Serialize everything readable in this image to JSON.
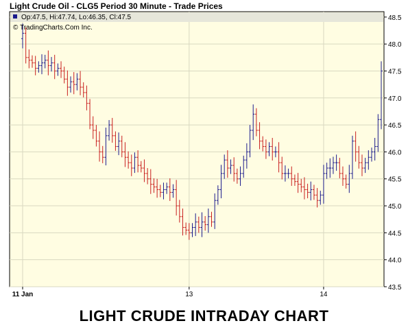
{
  "header": {
    "title": "Light Crude Oil - CLG5 Period 30 Minute - Trade Prices",
    "ohlc": "Op:47.5, Hi:47.74, Lo:46.35, Cl:47.5",
    "source": "© TradingCharts.Com Inc."
  },
  "caption": "LIGHT CRUDE INTRADAY CHART",
  "colors": {
    "up": "#1a1a8c",
    "down": "#c81e1e",
    "background": "#fffde2",
    "info_band": "#e6e6da"
  },
  "chart_data": {
    "type": "ohlc",
    "title": "Light Crude Oil - CLG5 Period 30 Minute - Trade Prices",
    "x_ticks": [
      {
        "label": "11 Jan",
        "index": 0
      },
      {
        "label": "13",
        "index": 52
      },
      {
        "label": "14",
        "index": 94
      }
    ],
    "y_ticks": [
      "43.5",
      "44.0",
      "44.5",
      "45.0",
      "45.5",
      "46.0",
      "46.5",
      "47.0",
      "47.5",
      "48.0",
      "48.5"
    ],
    "ylim": [
      43.5,
      48.6
    ],
    "grid": true,
    "legend": "none",
    "values": [
      48.2,
      47.75,
      47.7,
      47.65,
      47.55,
      47.6,
      47.65,
      47.7,
      47.6,
      47.65,
      47.5,
      47.55,
      47.5,
      47.35,
      47.2,
      47.3,
      47.25,
      47.35,
      47.2,
      47.1,
      46.9,
      46.5,
      46.4,
      46.2,
      46.0,
      45.9,
      46.3,
      46.5,
      46.3,
      46.1,
      46.2,
      46.0,
      45.9,
      45.8,
      45.7,
      45.9,
      45.75,
      45.7,
      45.6,
      45.5,
      45.4,
      45.35,
      45.3,
      45.25,
      45.3,
      45.35,
      45.25,
      45.3,
      45.0,
      44.8,
      44.6,
      44.55,
      44.5,
      44.6,
      44.7,
      44.6,
      44.7,
      44.65,
      44.8,
      44.7,
      45.1,
      45.3,
      45.6,
      45.85,
      45.7,
      45.75,
      45.6,
      45.5,
      45.6,
      45.85,
      46.0,
      46.4,
      46.7,
      46.4,
      46.2,
      46.1,
      46.0,
      46.1,
      46.0,
      46.0,
      45.8,
      45.6,
      45.6,
      45.6,
      45.5,
      45.45,
      45.4,
      45.35,
      45.3,
      45.25,
      45.3,
      45.2,
      45.1,
      45.2,
      45.6,
      45.7,
      45.7,
      45.8,
      45.8,
      45.6,
      45.5,
      45.4,
      45.6,
      46.2,
      46.0,
      45.8,
      45.7,
      45.8,
      45.9,
      46.0,
      46.1,
      46.6,
      47.5
    ]
  }
}
